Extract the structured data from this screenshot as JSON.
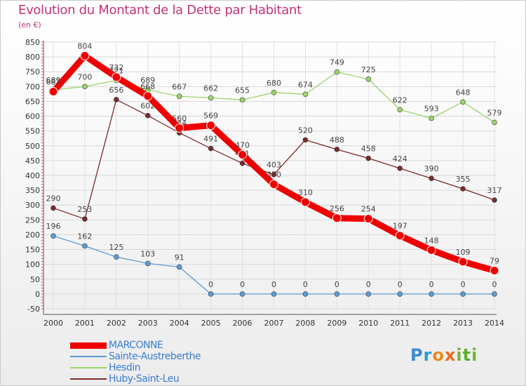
{
  "title": "Evolution du Montant de la Dette par Habitant",
  "unit_label": "(en €)",
  "logo_text": "Proxiti",
  "chart_data": {
    "type": "line",
    "x": [
      "2000",
      "2001",
      "2002",
      "2003",
      "2004",
      "2005",
      "2006",
      "2007",
      "2008",
      "2009",
      "2010",
      "2011",
      "2012",
      "2013",
      "2014"
    ],
    "ylim": [
      -50,
      850
    ],
    "yticks": [
      -50,
      0,
      50,
      100,
      150,
      200,
      250,
      300,
      350,
      400,
      450,
      500,
      550,
      600,
      650,
      700,
      750,
      800,
      850
    ],
    "grid": true,
    "legend_position": "bottom-left",
    "series": [
      {
        "name": "MARCONNE",
        "color": "#ee0000",
        "values": [
          683,
          804,
          732,
          668,
          560,
          569,
          470,
          370,
          310,
          256,
          254,
          197,
          148,
          109,
          79
        ]
      },
      {
        "name": "Sainte-Austreberthe",
        "color": "#5b9bd5",
        "values": [
          196,
          162,
          125,
          103,
          91,
          0,
          0,
          0,
          0,
          0,
          0,
          0,
          0,
          0,
          0
        ]
      },
      {
        "name": "Hesdin",
        "color": "#9bd36a",
        "values": [
          689,
          700,
          721,
          689,
          667,
          662,
          655,
          680,
          674,
          749,
          725,
          622,
          593,
          648,
          579
        ]
      },
      {
        "name": "Huby-Saint-Leu",
        "color": "#7a2a2a",
        "values": [
          290,
          253,
          656,
          602,
          544,
          491,
          441,
          403,
          520,
          488,
          458,
          424,
          390,
          355,
          317
        ]
      }
    ]
  }
}
